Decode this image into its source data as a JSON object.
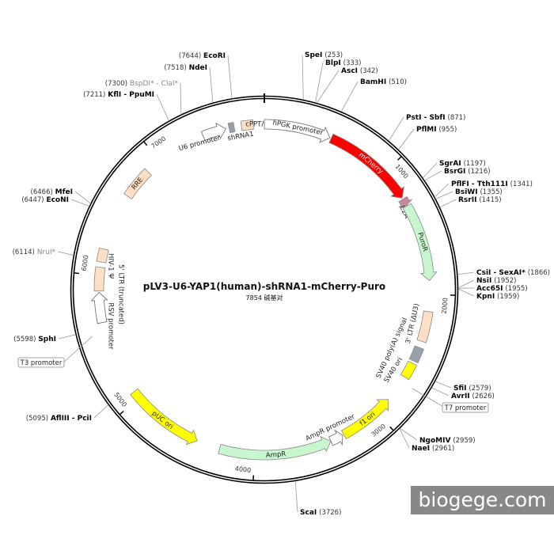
{
  "plasmid": {
    "name": "pLV3-U6-YAP1(human)-shRNA1-mCherry-Puro",
    "length_label": "7854 碱基对",
    "length": 7854
  },
  "watermark": "biogege.com",
  "ticks": [
    {
      "bp": 1000,
      "label": "1000"
    },
    {
      "bp": 2000,
      "label": "2000"
    },
    {
      "bp": 3000,
      "label": "3000"
    },
    {
      "bp": 4000,
      "label": "4000"
    },
    {
      "bp": 5000,
      "label": "5000"
    },
    {
      "bp": 6000,
      "label": "6000"
    },
    {
      "bp": 7000,
      "label": "7000"
    }
  ],
  "sites": [
    {
      "name": "EcoRI",
      "bp": "7644"
    },
    {
      "name": "NdeI",
      "bp": "7518"
    },
    {
      "name": "BspDI* - ClaI*",
      "bp": "7300",
      "grey": true
    },
    {
      "name": "KflI - PpuMI",
      "bp": "7211"
    },
    {
      "name": "SpeI",
      "bp": "253"
    },
    {
      "name": "BlpI",
      "bp": "333"
    },
    {
      "name": "AscI",
      "bp": "342"
    },
    {
      "name": "BamHI",
      "bp": "510"
    },
    {
      "name": "PstI - SbfI",
      "bp": "871"
    },
    {
      "name": "PflMI",
      "bp": "955"
    },
    {
      "name": "SgrAI",
      "bp": "1197"
    },
    {
      "name": "BsrGI",
      "bp": "1216"
    },
    {
      "name": "PflFI - Tth111I",
      "bp": "1341"
    },
    {
      "name": "BsiWI",
      "bp": "1355"
    },
    {
      "name": "RsrII",
      "bp": "1415"
    },
    {
      "name": "CsiI - SexAI*",
      "bp": "1866"
    },
    {
      "name": "NsiI",
      "bp": "1952"
    },
    {
      "name": "Acc65I",
      "bp": "1955"
    },
    {
      "name": "KpnI",
      "bp": "1959"
    },
    {
      "name": "SfiI",
      "bp": "2579"
    },
    {
      "name": "AvrII",
      "bp": "2626"
    },
    {
      "name": "NgoMIV",
      "bp": "2959"
    },
    {
      "name": "NaeI",
      "bp": "2961"
    },
    {
      "name": "ScaI",
      "bp": "3726"
    },
    {
      "name": "AflIII - PciI",
      "bp": "5095"
    },
    {
      "name": "SphI",
      "bp": "5598"
    },
    {
      "name": "NruI*",
      "bp": "6114",
      "grey": true
    },
    {
      "name": "MfeI",
      "bp": "6466"
    },
    {
      "name": "EcoNI",
      "bp": "6447"
    }
  ],
  "boxed_labels": [
    {
      "label": "T7 promoter",
      "bp": 2700
    },
    {
      "label": "T3 promoter",
      "bp": 5560
    }
  ],
  "features": [
    {
      "label": "U6 promoter",
      "start": 7380,
      "end": 7560,
      "dir": 1,
      "color": "#ffffff"
    },
    {
      "label": "shRNA1",
      "start": 7585,
      "end": 7625,
      "dir": 0,
      "color": "#9aa0a8"
    },
    {
      "label": "cPPT/CTS",
      "start": 7680,
      "end": 7770,
      "dir": 0,
      "color": "#fde0c4"
    },
    {
      "label": "hPGK promoter",
      "start": 0,
      "end": 510,
      "dir": 1,
      "color": "#ffffff"
    },
    {
      "label": "mCherry",
      "start": 520,
      "end": 1230,
      "dir": 1,
      "color": "#ff0000"
    },
    {
      "label": "E2A",
      "start": 1240,
      "end": 1295,
      "dir": 1,
      "color": "#c9899e"
    },
    {
      "label": "PuroR",
      "start": 1300,
      "end": 1895,
      "dir": 1,
      "color": "#c8f7cf"
    },
    {
      "label": "3' LTR (ΔU3)",
      "start": 2130,
      "end": 2360,
      "dir": 0,
      "color": "#fde0c4"
    },
    {
      "label": "SV40 poly(A) signal",
      "start": 2410,
      "end": 2520,
      "dir": 0,
      "color": "#9aa0a8"
    },
    {
      "label": "SV40 ori",
      "start": 2540,
      "end": 2660,
      "dir": 0,
      "color": "#ffff00"
    },
    {
      "label": "f1 ori",
      "start": 2870,
      "end": 3300,
      "dir": -1,
      "color": "#ffff00"
    },
    {
      "label": "AmpR promoter",
      "start": 3310,
      "end": 3410,
      "dir": -1,
      "color": "#ffffff"
    },
    {
      "label": "AmpR",
      "start": 3410,
      "end": 4270,
      "dir": -1,
      "color": "#c8f7cf"
    },
    {
      "label": "pUC ori",
      "start": 4450,
      "end": 5060,
      "dir": -1,
      "color": "#ffff00"
    },
    {
      "label": "RSV promoter",
      "start": 5640,
      "end": 5870,
      "dir": 1,
      "color": "#ffffff"
    },
    {
      "label": "5' LTR (truncated)",
      "start": 5880,
      "end": 6060,
      "dir": 0,
      "color": "#fde0c4"
    },
    {
      "label": "HIV-1 Ψ",
      "start": 6100,
      "end": 6200,
      "dir": 0,
      "color": "#fde0c4"
    },
    {
      "label": "RRE",
      "start": 6640,
      "end": 6880,
      "dir": 0,
      "color": "#fde0c4"
    }
  ]
}
